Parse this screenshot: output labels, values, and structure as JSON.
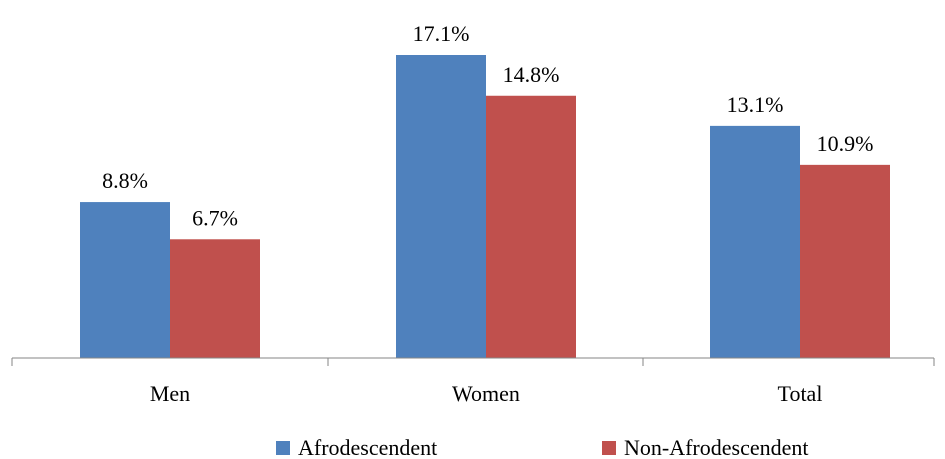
{
  "chart_data": {
    "type": "bar",
    "categories": [
      "Men",
      "Women",
      "Total"
    ],
    "series": [
      {
        "name": "Afrodescendent",
        "values": [
          8.8,
          17.1,
          13.1
        ],
        "labels": [
          "8.8%",
          "17.1%",
          "13.1%"
        ],
        "color": "#4F81BD"
      },
      {
        "name": "Non-Afrodescendent",
        "values": [
          6.7,
          14.8,
          10.9
        ],
        "labels": [
          "6.7%",
          "14.8%",
          "10.9%"
        ],
        "color": "#C0504D"
      }
    ],
    "ylim": [
      0,
      17.1
    ],
    "grid": false,
    "legend_position": "bottom"
  }
}
